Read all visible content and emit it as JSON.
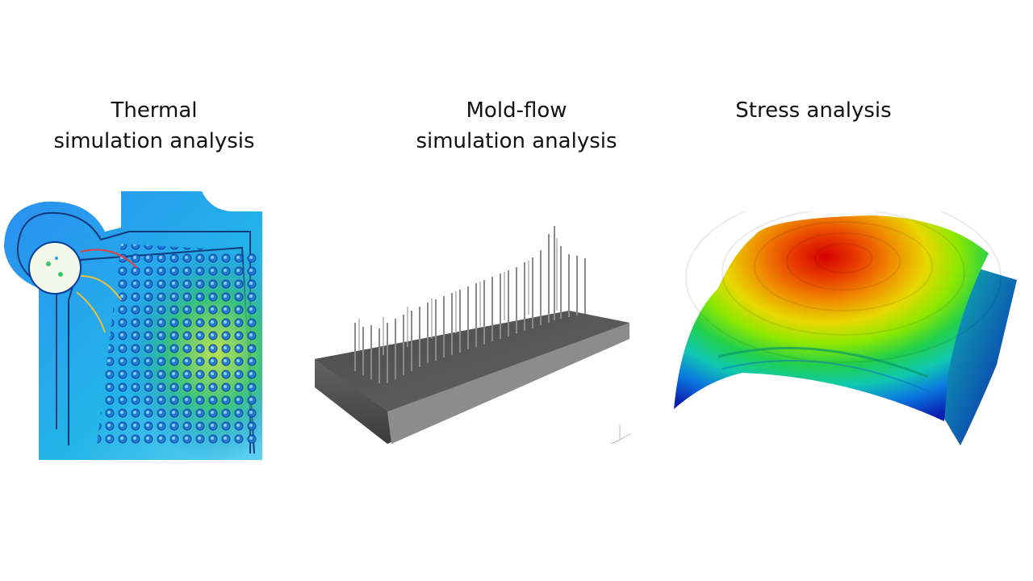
{
  "panels": [
    {
      "id": "thermal",
      "caption_lines": [
        "Thermal",
        "simulation analysis"
      ],
      "image": "thermal-simulation-heatmap"
    },
    {
      "id": "moldflow",
      "caption_lines": [
        "Mold-flow",
        "simulation analysis"
      ],
      "image": "mold-flow-pin-fin-model"
    },
    {
      "id": "stress",
      "caption_lines": [
        "Stress analysis"
      ],
      "image": "stress-contour-curved-surface"
    }
  ],
  "colors": {
    "background": "#ffffff",
    "heat_low": "#0a2ccf",
    "heat_mid": "#22c55e",
    "heat_high": "#d40000",
    "metal": "#555555"
  }
}
